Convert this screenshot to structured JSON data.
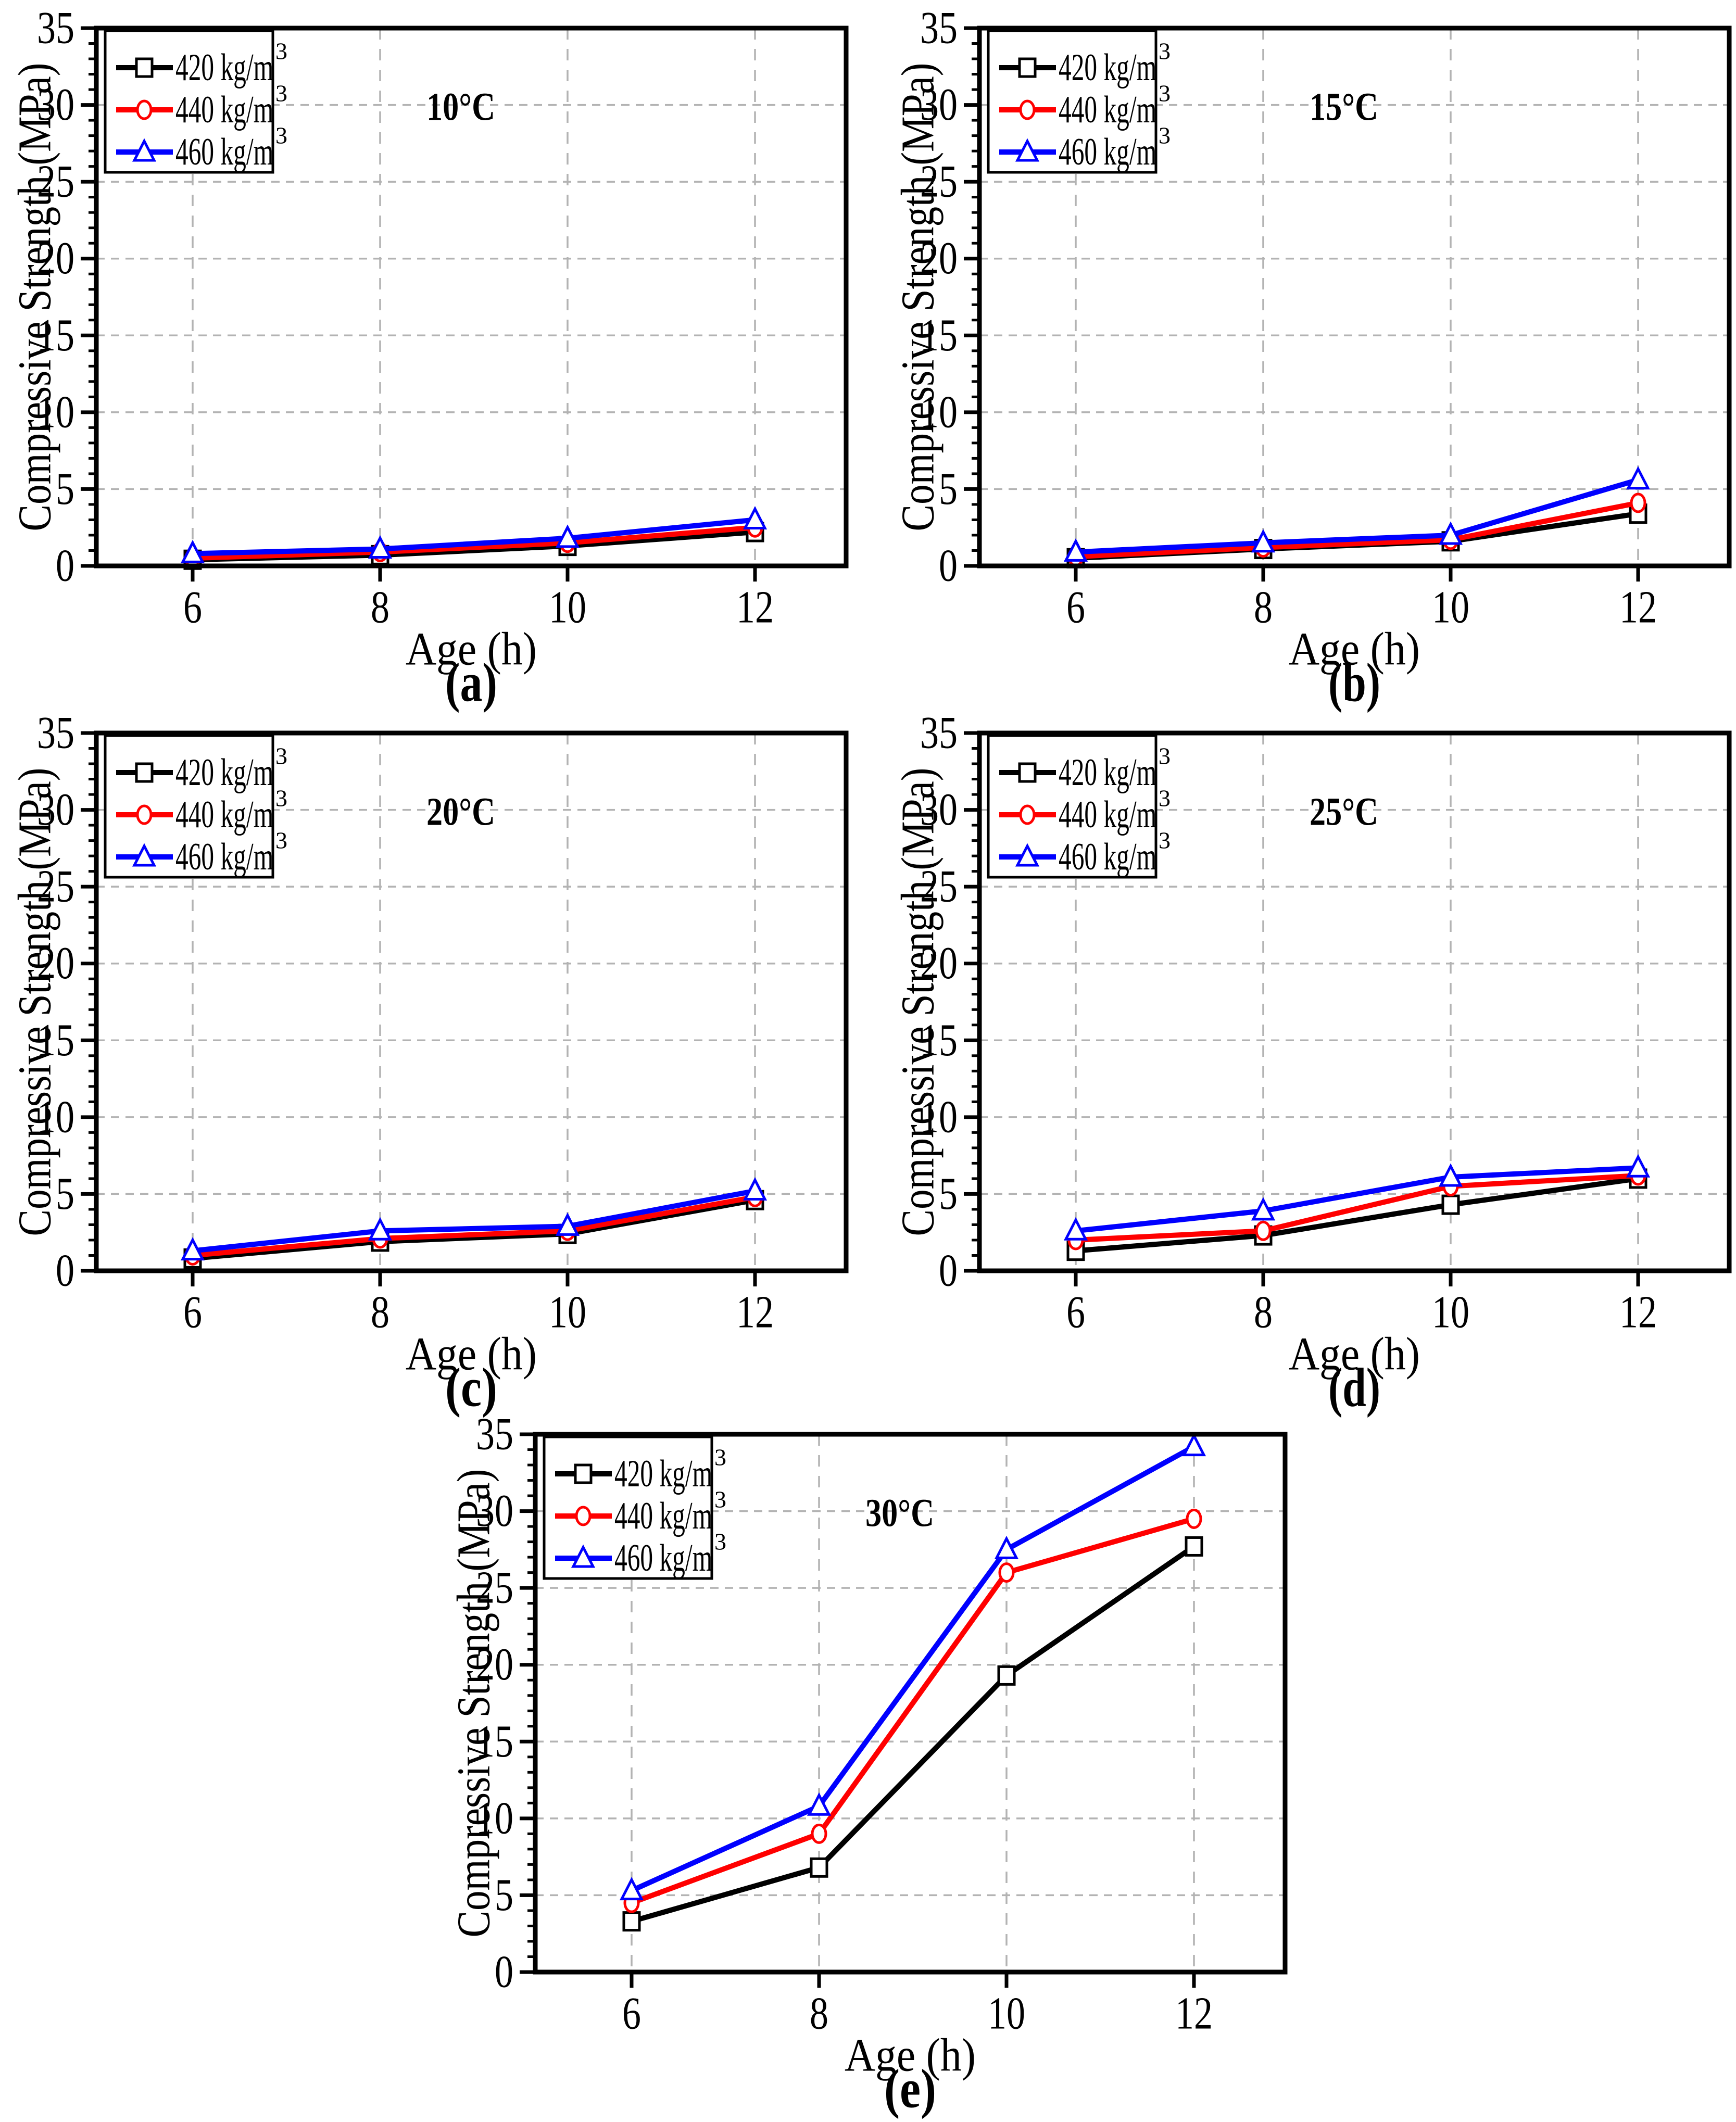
{
  "figure": {
    "y_axis_label": "Compressive Strength (MPa)",
    "x_axis_label": "Age (h)",
    "legend": [
      {
        "label": "420 kg/m",
        "sup": "3",
        "color": "#000000",
        "marker": "square"
      },
      {
        "label": "440 kg/m",
        "sup": "3",
        "color": "#ff0000",
        "marker": "circle"
      },
      {
        "label": "460 kg/m",
        "sup": "3",
        "color": "#0000ff",
        "marker": "triangle"
      }
    ],
    "colors": {
      "series_420": "#000000",
      "series_440": "#ff0000",
      "series_460": "#0000ff",
      "grid": "#b3b3b3",
      "frame": "#000000",
      "background": "#ffffff"
    }
  },
  "chart_data": [
    {
      "type": "line",
      "panel": "a",
      "title": "10°C",
      "caption": "(a)",
      "xlabel": "Age (h)",
      "ylabel": "Compressive Strength (MPa)",
      "x": [
        6,
        8,
        10,
        12
      ],
      "x_ticks": [
        6,
        8,
        10,
        12
      ],
      "y_ticks": [
        0,
        5,
        10,
        15,
        20,
        25,
        30,
        35
      ],
      "ylim": [
        0,
        35
      ],
      "xlim": [
        5,
        13
      ],
      "grid": "dashed",
      "legend_position": "top-left",
      "series": [
        {
          "name": "420 kg/m³",
          "color": "#000000",
          "marker": "square",
          "values": [
            0.4,
            0.7,
            1.3,
            2.2
          ]
        },
        {
          "name": "440 kg/m³",
          "color": "#ff0000",
          "marker": "circle",
          "values": [
            0.5,
            0.9,
            1.5,
            2.5
          ]
        },
        {
          "name": "460 kg/m³",
          "color": "#0000ff",
          "marker": "triangle",
          "values": [
            0.8,
            1.1,
            1.8,
            3.0
          ]
        }
      ]
    },
    {
      "type": "line",
      "panel": "b",
      "title": "15°C",
      "caption": "(b)",
      "xlabel": "Age (h)",
      "ylabel": "Compressive Strength (MPa)",
      "x": [
        6,
        8,
        10,
        12
      ],
      "x_ticks": [
        6,
        8,
        10,
        12
      ],
      "y_ticks": [
        0,
        5,
        10,
        15,
        20,
        25,
        30,
        35
      ],
      "ylim": [
        0,
        35
      ],
      "xlim": [
        5,
        13
      ],
      "grid": "dashed",
      "legend_position": "top-left",
      "series": [
        {
          "name": "420 kg/m³",
          "color": "#000000",
          "marker": "square",
          "values": [
            0.5,
            1.1,
            1.6,
            3.4
          ]
        },
        {
          "name": "440 kg/m³",
          "color": "#ff0000",
          "marker": "circle",
          "values": [
            0.6,
            1.2,
            1.7,
            4.1
          ]
        },
        {
          "name": "460 kg/m³",
          "color": "#0000ff",
          "marker": "triangle",
          "values": [
            0.9,
            1.5,
            2.0,
            5.6
          ]
        }
      ]
    },
    {
      "type": "line",
      "panel": "c",
      "title": "20°C",
      "caption": "(c)",
      "xlabel": "Age (h)",
      "ylabel": "Compressive Strength (MPa)",
      "x": [
        6,
        8,
        10,
        12
      ],
      "x_ticks": [
        6,
        8,
        10,
        12
      ],
      "y_ticks": [
        0,
        5,
        10,
        15,
        20,
        25,
        30,
        35
      ],
      "ylim": [
        0,
        35
      ],
      "xlim": [
        5,
        13
      ],
      "grid": "dashed",
      "legend_position": "top-left",
      "series": [
        {
          "name": "420 kg/m³",
          "color": "#000000",
          "marker": "square",
          "values": [
            0.8,
            1.9,
            2.4,
            4.6
          ]
        },
        {
          "name": "440 kg/m³",
          "color": "#ff0000",
          "marker": "circle",
          "values": [
            1.0,
            2.1,
            2.6,
            4.8
          ]
        },
        {
          "name": "460 kg/m³",
          "color": "#0000ff",
          "marker": "triangle",
          "values": [
            1.3,
            2.6,
            2.9,
            5.2
          ]
        }
      ]
    },
    {
      "type": "line",
      "panel": "d",
      "title": "25°C",
      "caption": "(d)",
      "xlabel": "Age (h)",
      "ylabel": "Compressive Strength (MPa)",
      "x": [
        6,
        8,
        10,
        12
      ],
      "x_ticks": [
        6,
        8,
        10,
        12
      ],
      "y_ticks": [
        0,
        5,
        10,
        15,
        20,
        25,
        30,
        35
      ],
      "ylim": [
        0,
        35
      ],
      "xlim": [
        5,
        13
      ],
      "grid": "dashed",
      "legend_position": "top-left",
      "series": [
        {
          "name": "420 kg/m³",
          "color": "#000000",
          "marker": "square",
          "values": [
            1.3,
            2.3,
            4.3,
            6.0
          ]
        },
        {
          "name": "440 kg/m³",
          "color": "#ff0000",
          "marker": "circle",
          "values": [
            2.0,
            2.6,
            5.5,
            6.2
          ]
        },
        {
          "name": "460 kg/m³",
          "color": "#0000ff",
          "marker": "triangle",
          "values": [
            2.6,
            3.9,
            6.1,
            6.7
          ]
        }
      ]
    },
    {
      "type": "line",
      "panel": "e",
      "title": "30°C",
      "caption": "(e)",
      "xlabel": "Age (h)",
      "ylabel": "Compressive Strength (MPa)",
      "x": [
        6,
        8,
        10,
        12
      ],
      "x_ticks": [
        6,
        8,
        10,
        12
      ],
      "y_ticks": [
        0,
        5,
        10,
        15,
        20,
        25,
        30,
        35
      ],
      "ylim": [
        0,
        35
      ],
      "xlim": [
        5,
        13
      ],
      "grid": "dashed",
      "legend_position": "top-left",
      "series": [
        {
          "name": "420 kg/m³",
          "color": "#000000",
          "marker": "square",
          "values": [
            3.3,
            6.8,
            19.3,
            27.7
          ]
        },
        {
          "name": "440 kg/m³",
          "color": "#ff0000",
          "marker": "circle",
          "values": [
            4.5,
            9.0,
            26.0,
            29.5
          ]
        },
        {
          "name": "460 kg/m³",
          "color": "#0000ff",
          "marker": "triangle",
          "values": [
            5.3,
            10.8,
            27.5,
            34.2
          ]
        }
      ]
    }
  ]
}
